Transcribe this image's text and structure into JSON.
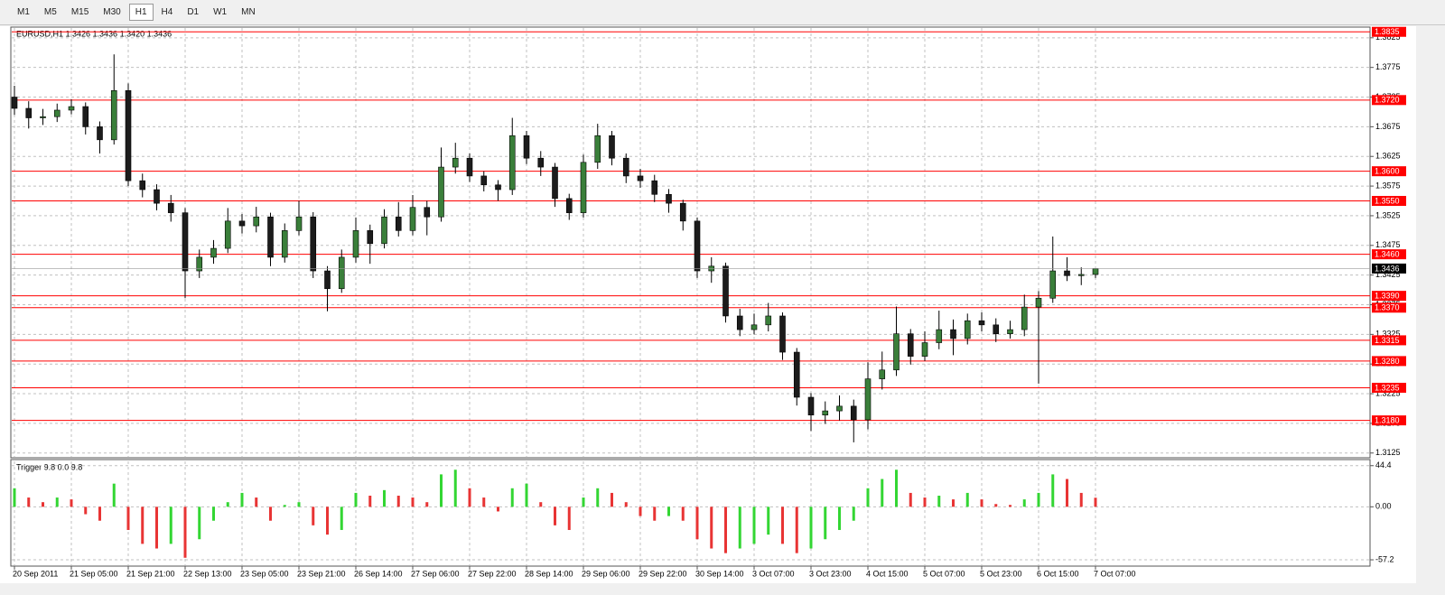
{
  "toolbar": {
    "buttons": [
      "M1",
      "M5",
      "M15",
      "M30",
      "H1",
      "H4",
      "D1",
      "W1",
      "MN"
    ],
    "active": "H1"
  },
  "chart_data": [
    {
      "type": "candlestick",
      "title": "EURUSD,H1  1.3426 1.3436 1.3420 1.3436",
      "categories": [
        "20 Sep 2011",
        null,
        null,
        null,
        "21 Sep 05:00",
        null,
        null,
        null,
        "21 Sep 21:00",
        null,
        null,
        null,
        "22 Sep 13:00",
        null,
        null,
        null,
        "23 Sep 05:00",
        null,
        null,
        null,
        "23 Sep 21:00",
        null,
        null,
        null,
        "26 Sep 14:00",
        null,
        null,
        null,
        "27 Sep 06:00",
        null,
        null,
        null,
        "27 Sep 22:00",
        null,
        null,
        null,
        "28 Sep 14:00",
        null,
        null,
        null,
        "29 Sep 06:00",
        null,
        null,
        null,
        "29 Sep 22:00",
        null,
        null,
        null,
        "30 Sep 14:00",
        null,
        null,
        null,
        "3 Oct 07:00",
        null,
        null,
        null,
        "3 Oct 23:00",
        null,
        null,
        null,
        "4 Oct 15:00",
        null,
        null,
        null,
        "5 Oct 07:00",
        null,
        null,
        null,
        "5 Oct 23:00",
        null,
        null,
        null,
        "6 Oct 15:00",
        null,
        null,
        null,
        "7 Oct 07:00"
      ],
      "open": [
        1.3725,
        1.3706,
        1.369,
        1.3692,
        1.3703,
        1.3709,
        1.3675,
        1.3653,
        1.3736,
        1.3584,
        1.3569,
        1.3546,
        1.353,
        1.3432,
        1.3455,
        1.347,
        1.3516,
        1.3508,
        1.3523,
        1.3455,
        1.35,
        1.3523,
        1.3432,
        1.3402,
        1.3455,
        1.35,
        1.3478,
        1.3523,
        1.35,
        1.3539,
        1.3523,
        1.3607,
        1.3622,
        1.3592,
        1.3577,
        1.3569,
        1.366,
        1.3622,
        1.3607,
        1.3554,
        1.353,
        1.3615,
        1.366,
        1.3622,
        1.3592,
        1.3584,
        1.3561,
        1.3546,
        1.3516,
        1.3432,
        1.344,
        1.3356,
        1.3333,
        1.3341,
        1.3356,
        1.3295,
        1.3219,
        1.3189,
        1.3196,
        1.3204,
        1.3181,
        1.325,
        1.3265,
        1.3326,
        1.3288,
        1.3311,
        1.3333,
        1.3318,
        1.3348,
        1.3341,
        1.3326,
        1.3333,
        1.3371,
        1.3386,
        1.3432,
        1.3424,
        1.3426
      ],
      "high": [
        1.3744,
        1.3718,
        1.3705,
        1.3714,
        1.3721,
        1.3716,
        1.3684,
        1.3797,
        1.3748,
        1.3596,
        1.3578,
        1.356,
        1.3538,
        1.3468,
        1.3484,
        1.3538,
        1.3528,
        1.354,
        1.353,
        1.3512,
        1.355,
        1.3531,
        1.344,
        1.3468,
        1.3522,
        1.351,
        1.3536,
        1.3548,
        1.356,
        1.355,
        1.364,
        1.3648,
        1.363,
        1.36,
        1.3585,
        1.369,
        1.3668,
        1.3634,
        1.3614,
        1.3562,
        1.3628,
        1.368,
        1.3668,
        1.363,
        1.3604,
        1.3594,
        1.357,
        1.3552,
        1.3522,
        1.3455,
        1.3446,
        1.3368,
        1.336,
        1.3378,
        1.3362,
        1.3302,
        1.3226,
        1.3212,
        1.3222,
        1.3215,
        1.3278,
        1.3296,
        1.3372,
        1.3334,
        1.333,
        1.3365,
        1.335,
        1.336,
        1.3362,
        1.3352,
        1.3348,
        1.3392,
        1.3398,
        1.349,
        1.3455,
        1.3438,
        1.3436
      ],
      "low": [
        1.3695,
        1.3672,
        1.3678,
        1.3683,
        1.3696,
        1.3662,
        1.363,
        1.3645,
        1.3575,
        1.3556,
        1.3534,
        1.3515,
        1.3386,
        1.342,
        1.3444,
        1.3462,
        1.3495,
        1.3497,
        1.344,
        1.3446,
        1.3492,
        1.342,
        1.3364,
        1.3395,
        1.3446,
        1.3444,
        1.347,
        1.349,
        1.3492,
        1.3492,
        1.3515,
        1.3596,
        1.3582,
        1.3566,
        1.355,
        1.356,
        1.3612,
        1.3592,
        1.354,
        1.3518,
        1.3522,
        1.3604,
        1.361,
        1.358,
        1.3572,
        1.3548,
        1.353,
        1.35,
        1.342,
        1.3412,
        1.3345,
        1.3322,
        1.3325,
        1.333,
        1.3282,
        1.3205,
        1.3162,
        1.3174,
        1.318,
        1.3143,
        1.3165,
        1.3232,
        1.3255,
        1.3274,
        1.328,
        1.33,
        1.329,
        1.3308,
        1.333,
        1.3312,
        1.3318,
        1.3322,
        1.3242,
        1.3378,
        1.3415,
        1.3408,
        1.342
      ],
      "close": [
        1.3706,
        1.369,
        1.3692,
        1.3703,
        1.3709,
        1.3675,
        1.3653,
        1.3736,
        1.3584,
        1.3569,
        1.3546,
        1.353,
        1.3432,
        1.3455,
        1.347,
        1.3516,
        1.3508,
        1.3523,
        1.3455,
        1.35,
        1.3523,
        1.3432,
        1.3402,
        1.3455,
        1.35,
        1.3478,
        1.3523,
        1.35,
        1.3539,
        1.3523,
        1.3607,
        1.3622,
        1.3592,
        1.3577,
        1.3569,
        1.366,
        1.3622,
        1.3607,
        1.3554,
        1.353,
        1.3615,
        1.366,
        1.3622,
        1.3592,
        1.3584,
        1.3561,
        1.3546,
        1.3516,
        1.3432,
        1.344,
        1.3356,
        1.3333,
        1.3341,
        1.3356,
        1.3295,
        1.3219,
        1.3189,
        1.3196,
        1.3204,
        1.3181,
        1.325,
        1.3265,
        1.3326,
        1.3288,
        1.3311,
        1.3333,
        1.3318,
        1.3348,
        1.3341,
        1.3326,
        1.3333,
        1.3371,
        1.3386,
        1.3432,
        1.3424,
        1.3426,
        1.3436
      ],
      "up_color": "#3a7f3a",
      "down_color": "#1c1c1c",
      "ylim": [
        1.3117,
        1.3843
      ],
      "yticks": [
        1.3125,
        1.3175,
        1.3225,
        1.3275,
        1.3325,
        1.3375,
        1.3425,
        1.3475,
        1.3525,
        1.3575,
        1.3625,
        1.3675,
        {
          "value": 1.3725,
          "label": "1.3725"
        },
        1.3775,
        1.3825
      ],
      "grid": true,
      "levels": [
        1.3835,
        {
          "value": 1.372,
          "label": "1.3720"
        },
        {
          "value": 1.36,
          "label": "1.3600"
        },
        {
          "value": 1.355,
          "label": "1.3550"
        },
        {
          "value": 1.346,
          "label": "1.3460"
        },
        {
          "value": 1.339,
          "label": "1.3390"
        },
        {
          "value": 1.337,
          "label": "1.3370"
        },
        1.3315,
        {
          "value": 1.328,
          "label": "1.3280"
        },
        1.3235,
        {
          "value": 1.318,
          "label": "1.3180"
        }
      ],
      "level_color": "#ff0000",
      "last_price": 1.3436
    },
    {
      "type": "bar",
      "title": "Trigger 9.8 0.0 9.8",
      "values": [
        20,
        10,
        5,
        10,
        8,
        -8,
        -15,
        25,
        -25,
        -40,
        -45,
        -40,
        -55,
        -35,
        -15,
        5,
        15,
        10,
        -15,
        2,
        5,
        -20,
        -30,
        -25,
        15,
        12,
        18,
        12,
        10,
        5,
        35,
        40,
        20,
        10,
        -5,
        20,
        25,
        5,
        -20,
        -25,
        10,
        20,
        15,
        5,
        -10,
        -15,
        -10,
        -15,
        -35,
        -45,
        -50,
        -45,
        -40,
        -30,
        -40,
        -50,
        -45,
        -35,
        -25,
        -15,
        20,
        30,
        40,
        15,
        10,
        12,
        8,
        15,
        8,
        3,
        2,
        8,
        15,
        35,
        30,
        15,
        9.8
      ],
      "up_color": "#33d633",
      "down_color": "#e83434",
      "ylim": [
        -64,
        50
      ],
      "yticks": [
        -57.2,
        {
          "value": 0,
          "label": "0.00"
        },
        44.4
      ],
      "grid": true
    }
  ]
}
